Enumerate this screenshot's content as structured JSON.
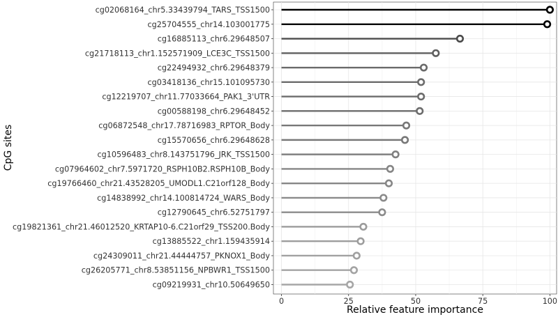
{
  "chart_data": {
    "type": "lollipop",
    "xlabel": "Relative feature importance",
    "ylabel": "CpG sites",
    "xlim": [
      -3,
      102.5
    ],
    "xticks": [
      0,
      25,
      50,
      75,
      100
    ],
    "grid": true,
    "legend": "none",
    "colors": {
      "strongest": "#000000",
      "weakest": "#a6a6a6"
    },
    "categories": [
      "cg02068164_chr5.33439794_TARS_TSS1500",
      "cg25704555_chr14.103001775",
      "cg16885113_chr6.29648507",
      "cg21718113_chr1.152571909_LCE3C_TSS1500",
      "cg22494932_chr6.29648379",
      "cg03418136_chr15.101095730",
      "cg12219707_chr11.77033664_PAK1_3'UTR",
      "cg00588198_chr6.29648452",
      "cg06872548_chr17.78716983_RPTOR_Body",
      "cg15570656_chr6.29648628",
      "cg10596483_chr8.143751796_JRK_TSS1500",
      "cg07964602_chr7.5971720_RSPH10B2.RSPH10B_Body",
      "cg19766460_chr21.43528205_UMODL1.C21orf128_Body",
      "cg14838992_chr14.100814724_WARS_Body",
      "cg12790645_chr6.52751797",
      "cg19821361_chr21.46012520_KRTAP10-6.C21orf29_TSS200.Body",
      "cg13885522_chr1.159435914",
      "cg24309011_chr21.44444757_PKNOX1_Body",
      "cg26205771_chr8.53851156_NPBWR1_TSS1500",
      "cg09219931_chr10.50649650"
    ],
    "values": [
      100,
      99,
      66.5,
      57.5,
      53,
      52,
      52,
      51.5,
      46.5,
      46,
      42.5,
      40.5,
      40,
      38,
      37.5,
      30.5,
      29.5,
      28,
      27,
      25.5
    ]
  }
}
